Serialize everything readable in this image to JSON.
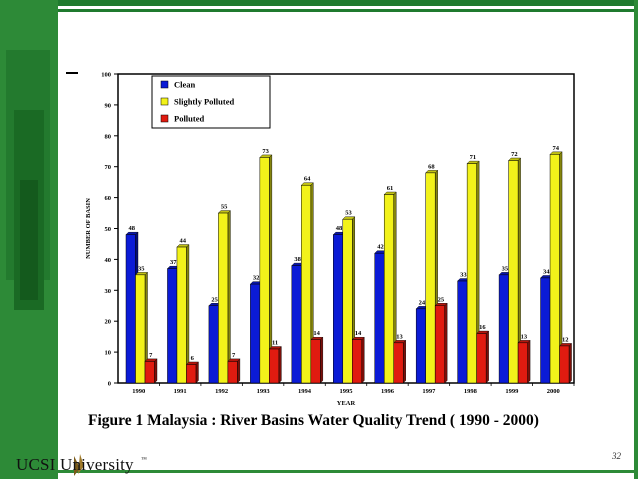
{
  "chart_data": {
    "type": "bar",
    "categories": [
      "1990",
      "1991",
      "1992",
      "1993",
      "1994",
      "1995",
      "1996",
      "1997",
      "1998",
      "1999",
      "2000"
    ],
    "series": [
      {
        "name": "Clean",
        "color": "#0b1bd6",
        "values": [
          48,
          37,
          25,
          32,
          38,
          48,
          42,
          24,
          33,
          35,
          34
        ]
      },
      {
        "name": "Slightly Polluted",
        "color": "#f2f21a",
        "values": [
          35,
          44,
          55,
          73,
          64,
          53,
          61,
          68,
          71,
          72,
          74
        ]
      },
      {
        "name": "Polluted",
        "color": "#e01b10",
        "values": [
          7,
          6,
          7,
          11,
          14,
          14,
          13,
          25,
          16,
          13,
          12
        ]
      }
    ],
    "ylabel": "NUMBER OF BASIN",
    "xlabel": "YEAR",
    "ylim": [
      0,
      100
    ],
    "yticks": [
      0,
      10,
      20,
      30,
      40,
      50,
      60,
      70,
      80,
      90,
      100
    ],
    "legend_position": "top-left",
    "grid": false
  },
  "caption": "Figure 1 Malaysia : River Basins Water Quality Trend ( 1990 - 2000)",
  "page_number": "32",
  "logo": {
    "text": "UCSI University",
    "tm": "™"
  }
}
